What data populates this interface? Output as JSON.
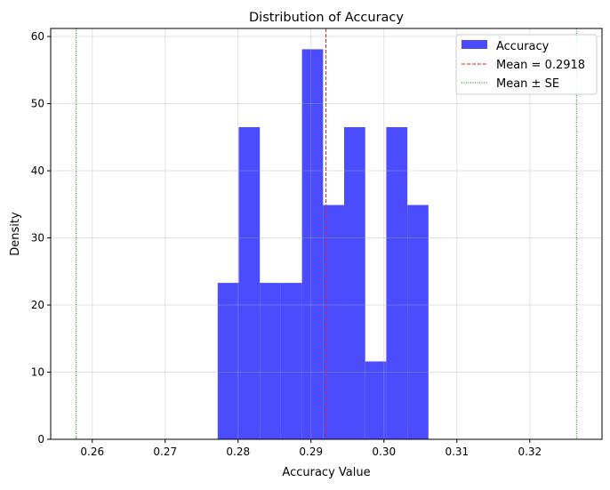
{
  "chart_data": {
    "type": "bar",
    "title": "Distribution of Accuracy",
    "xlabel": "Accuracy Value",
    "ylabel": "Density",
    "xlim": [
      0.2543,
      0.3299
    ],
    "ylim": [
      0,
      61.2
    ],
    "xticks": [
      "0.26",
      "0.27",
      "0.28",
      "0.29",
      "0.30",
      "0.31",
      "0.32"
    ],
    "xtick_values": [
      0.26,
      0.27,
      0.28,
      0.29,
      0.3,
      0.31,
      0.32
    ],
    "yticks": [
      "0",
      "10",
      "20",
      "30",
      "40",
      "50",
      "60"
    ],
    "ytick_values": [
      0,
      10,
      20,
      30,
      40,
      50,
      60
    ],
    "grid": true,
    "bin_edges": [
      0.2772,
      0.3061
    ],
    "bin_count": 10,
    "values": [
      23.3,
      46.5,
      23.3,
      23.3,
      58.1,
      34.9,
      46.5,
      11.6,
      46.5,
      34.9
    ],
    "bar_color": "#4c4cff",
    "mean": 0.2918,
    "mean_color": "#d62728",
    "se_lines": [
      0.2578,
      0.3264
    ],
    "se_color": "#008000",
    "legend": {
      "placement": "top-right",
      "entries": [
        "Accuracy",
        "Mean = 0.2918",
        "Mean ± SE"
      ]
    }
  }
}
